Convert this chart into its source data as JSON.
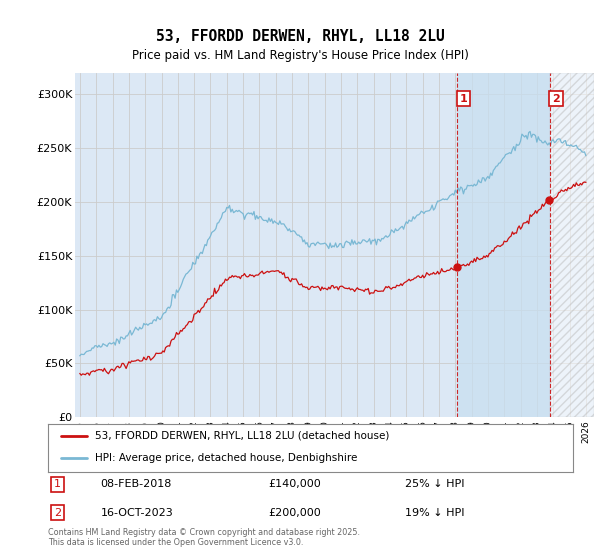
{
  "title": "53, FFORDD DERWEN, RHYL, LL18 2LU",
  "subtitle": "Price paid vs. HM Land Registry's House Price Index (HPI)",
  "hpi_label": "HPI: Average price, detached house, Denbighshire",
  "property_label": "53, FFORDD DERWEN, RHYL, LL18 2LU (detached house)",
  "hpi_color": "#7ab8d4",
  "property_color": "#cc1111",
  "vline_color": "#cc1111",
  "annotation_box_color": "#cc1111",
  "background_color": "#dce8f5",
  "shaded_color": "#c8dff0",
  "grid_color": "#cccccc",
  "ylim": [
    0,
    320000
  ],
  "transaction1": {
    "label": "1",
    "date": "08-FEB-2018",
    "price": 140000,
    "hpi_diff": "25% ↓ HPI",
    "x": 2018.1
  },
  "transaction2": {
    "label": "2",
    "date": "16-OCT-2023",
    "price": 200000,
    "hpi_diff": "19% ↓ HPI",
    "x": 2023.79
  },
  "footnote": "Contains HM Land Registry data © Crown copyright and database right 2025.\nThis data is licensed under the Open Government Licence v3.0.",
  "yticks": [
    0,
    50000,
    100000,
    150000,
    200000,
    250000,
    300000
  ],
  "ytick_labels": [
    "£0",
    "£50K",
    "£100K",
    "£150K",
    "£200K",
    "£250K",
    "£300K"
  ]
}
